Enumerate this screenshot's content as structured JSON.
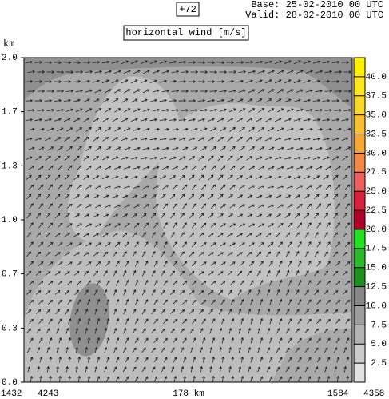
{
  "chart_data": {
    "type": "contour",
    "forecast_step": "+72",
    "base": "Base: 25-02-2010  00 UTC",
    "valid": "Valid: 28-02-2010  00 UTC",
    "title": "horizontal wind [m/s]",
    "y_unit": "km",
    "ylim": [
      0,
      2
    ],
    "yticks": [
      {
        "value": 0,
        "label": "0.0"
      },
      {
        "value": 0.333,
        "label": "0.3"
      },
      {
        "value": 0.667,
        "label": "0.7"
      },
      {
        "value": 1,
        "label": "1.0"
      },
      {
        "value": 1.333,
        "label": "1.3"
      },
      {
        "value": 1.667,
        "label": "1.7"
      },
      {
        "value": 2,
        "label": "2.0"
      }
    ],
    "x_labels": [
      "1432",
      "4243",
      "178 km",
      "1584",
      "4358"
    ],
    "colorbar": {
      "clim": [
        0,
        42.5
      ],
      "ticks": [
        2.5,
        {
          "value": 5,
          "label": "5.0"
        },
        7.5,
        {
          "value": 10,
          "label": "10.0"
        },
        12.5,
        {
          "value": 15,
          "label": "15.0"
        },
        17.5,
        {
          "value": 20,
          "label": "20.0"
        },
        22.5,
        {
          "value": 25,
          "label": "25.0"
        },
        27.5,
        {
          "value": 30,
          "label": "30.0"
        },
        32.5,
        {
          "value": 35,
          "label": "35.0"
        },
        37.5,
        {
          "value": 40,
          "label": "40.0"
        }
      ],
      "colors": [
        "#e2e2e2",
        "#cbcbcb",
        "#b4b4b4",
        "#9d9d9d",
        "#868686",
        "#1f8f1f",
        "#2db82d",
        "#22e022",
        "#b0002a",
        "#d8203c",
        "#e86060",
        "#f08848",
        "#f4a838",
        "#f6c030",
        "#f8d828",
        "#fbe820",
        "#fff200"
      ]
    }
  }
}
